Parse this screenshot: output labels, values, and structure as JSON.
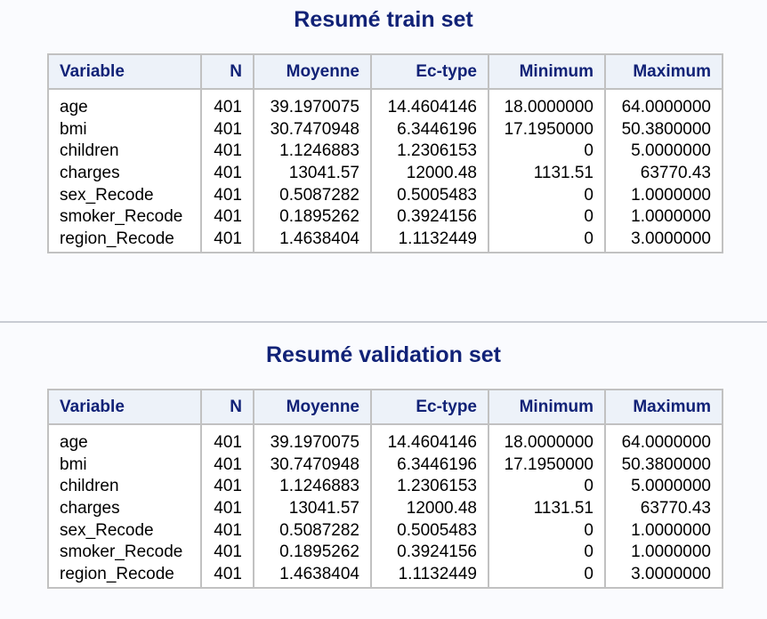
{
  "tables": [
    {
      "title": "Resumé train set",
      "headers": [
        "Variable",
        "N",
        "Moyenne",
        "Ec-type",
        "Minimum",
        "Maximum"
      ],
      "rows": [
        [
          "age",
          "401",
          "39.1970075",
          "14.4604146",
          "18.0000000",
          "64.0000000"
        ],
        [
          "bmi",
          "401",
          "30.7470948",
          "6.3446196",
          "17.1950000",
          "50.3800000"
        ],
        [
          "children",
          "401",
          "1.1246883",
          "1.2306153",
          "0",
          "5.0000000"
        ],
        [
          "charges",
          "401",
          "13041.57",
          "12000.48",
          "1131.51",
          "63770.43"
        ],
        [
          "sex_Recode",
          "401",
          "0.5087282",
          "0.5005483",
          "0",
          "1.0000000"
        ],
        [
          "smoker_Recode",
          "401",
          "0.1895262",
          "0.3924156",
          "0",
          "1.0000000"
        ],
        [
          "region_Recode",
          "401",
          "1.4638404",
          "1.1132449",
          "0",
          "3.0000000"
        ]
      ]
    },
    {
      "title": "Resumé validation set",
      "headers": [
        "Variable",
        "N",
        "Moyenne",
        "Ec-type",
        "Minimum",
        "Maximum"
      ],
      "rows": [
        [
          "age",
          "401",
          "39.1970075",
          "14.4604146",
          "18.0000000",
          "64.0000000"
        ],
        [
          "bmi",
          "401",
          "30.7470948",
          "6.3446196",
          "17.1950000",
          "50.3800000"
        ],
        [
          "children",
          "401",
          "1.1246883",
          "1.2306153",
          "0",
          "5.0000000"
        ],
        [
          "charges",
          "401",
          "13041.57",
          "12000.48",
          "1131.51",
          "63770.43"
        ],
        [
          "sex_Recode",
          "401",
          "0.5087282",
          "0.5005483",
          "0",
          "1.0000000"
        ],
        [
          "smoker_Recode",
          "401",
          "0.1895262",
          "0.3924156",
          "0",
          "1.0000000"
        ],
        [
          "region_Recode",
          "401",
          "1.4638404",
          "1.1132449",
          "0",
          "3.0000000"
        ]
      ]
    }
  ],
  "colors": {
    "title": "#112277",
    "header_bg": "#edf2f9",
    "header_text": "#112277",
    "cell_text": "#000000",
    "border": "#c1c1c1",
    "page_bg": "#fafbfe"
  }
}
